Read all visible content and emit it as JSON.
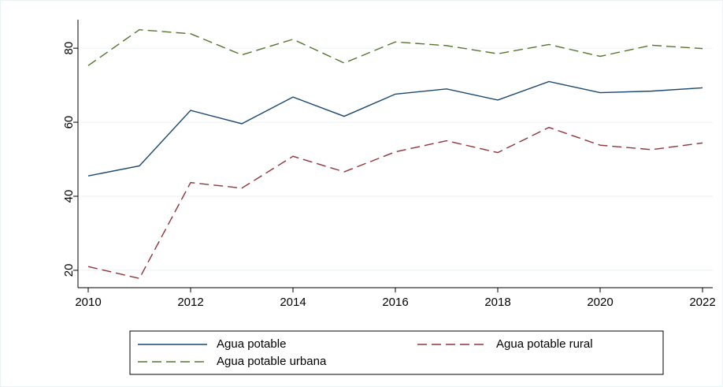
{
  "chart_data": {
    "type": "line",
    "x": [
      2010,
      2011,
      2012,
      2013,
      2014,
      2015,
      2016,
      2017,
      2018,
      2019,
      2020,
      2021,
      2022
    ],
    "series": [
      {
        "name": "Agua potable",
        "color": "#1a476f",
        "dash": "solid",
        "values": [
          45.5,
          48.2,
          63.2,
          59.6,
          66.8,
          61.6,
          67.6,
          69.0,
          66.0,
          71.0,
          68.0,
          68.4,
          69.3
        ]
      },
      {
        "name": "Agua potable rural",
        "color": "#90353b",
        "dash": "dashed",
        "values": [
          21.0,
          17.8,
          43.7,
          42.2,
          50.8,
          46.6,
          52.0,
          55.0,
          51.8,
          58.6,
          53.8,
          52.6,
          54.4
        ]
      },
      {
        "name": "Agua potable urbana",
        "color": "#55752f",
        "dash": "dashed",
        "values": [
          75.3,
          85.0,
          83.9,
          78.2,
          82.4,
          76.0,
          81.7,
          80.7,
          78.5,
          81.0,
          77.8,
          80.8,
          79.9
        ]
      }
    ],
    "xlim": [
      2009.8,
      2022.2
    ],
    "xticks": [
      2010,
      2012,
      2014,
      2016,
      2018,
      2020,
      2022
    ],
    "ylim": [
      15.3,
      87.7
    ],
    "yticks": [
      20,
      40,
      60,
      80
    ],
    "grid": true,
    "legend": "bottom"
  }
}
